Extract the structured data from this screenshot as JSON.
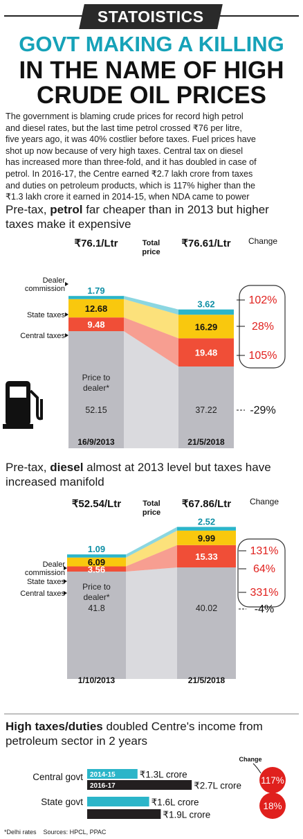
{
  "brand": "STATOISTICS",
  "headline": {
    "line1": "GOVT MAKING A KILLING",
    "line2": "IN THE NAME OF HIGH",
    "line3": "CRUDE OIL PRICES"
  },
  "intro": [
    "The government is blaming crude prices for record high petrol",
    "and diesel rates, but the last time petrol crossed ₹76 per litre,",
    "five years ago, it was 40% costlier before taxes. Fuel prices have",
    "shot up now because of very high taxes. Central tax on diesel",
    "has increased more than three-fold, and it has doubled in case of",
    "petrol. In 2016-17, the Centre earned ₹2.7 lakh crore from taxes",
    "and duties on petroleum products, which is 117% higher than the",
    "₹1.3 lakh crore it earned in 2014-15, when NDA came to power"
  ],
  "petrol": {
    "title_pre": "Pre-tax, ",
    "title_bold": "petrol",
    "title_post": " far cheaper than in 2013 but higher taxes make it expensive"
  },
  "diesel": {
    "title_pre": "Pre-tax, ",
    "title_bold": "diesel",
    "title_post": " almost at 2013 level but taxes have increased manifold"
  },
  "revenue": {
    "title_bold": "High taxes/duties",
    "title_post": " doubled Centre's income from petroleum sector in 2 years"
  },
  "colors": {
    "dealer": "#2bb5c9",
    "state": "#f9c80e",
    "central": "#f04e37",
    "base": "#bcbcc2",
    "change": "#e0201d",
    "bar_dark": "#231f20"
  },
  "footer": {
    "note": "*Delhi rates",
    "sources": "Sources: HPCL, PPAC"
  },
  "chart_data": [
    {
      "type": "bar",
      "title": "Pre-tax, petrol far cheaper than in 2013 but higher taxes make it expensive",
      "stacked": true,
      "categories": [
        "16/9/2013",
        "21/5/2018"
      ],
      "totals": [
        "₹76.1/Ltr",
        "₹76.61/Ltr"
      ],
      "total_label": "Total price",
      "change_label": "Change",
      "series": [
        {
          "name": "Price to dealer*",
          "values": [
            52.15,
            37.22
          ],
          "change": "-29%"
        },
        {
          "name": "Central taxes",
          "values": [
            9.48,
            19.48
          ],
          "change": "105%"
        },
        {
          "name": "State taxes",
          "values": [
            12.68,
            16.29
          ],
          "change": "28%"
        },
        {
          "name": "Dealer commission",
          "values": [
            1.79,
            3.62
          ],
          "change": "102%"
        }
      ]
    },
    {
      "type": "bar",
      "title": "Pre-tax, diesel almost at 2013 level but taxes have increased manifold",
      "stacked": true,
      "categories": [
        "1/10/2013",
        "21/5/2018"
      ],
      "totals": [
        "₹52.54/Ltr",
        "₹67.86/Ltr"
      ],
      "total_label": "Total price",
      "change_label": "Change",
      "series": [
        {
          "name": "Price to dealer*",
          "values": [
            41.8,
            40.02
          ],
          "change": "-4%"
        },
        {
          "name": "Central taxes",
          "values": [
            3.56,
            15.33
          ],
          "change": "331%"
        },
        {
          "name": "State taxes",
          "values": [
            6.09,
            9.99
          ],
          "change": "64%"
        },
        {
          "name": "Dealer commission",
          "values": [
            1.09,
            2.52
          ],
          "change": "131%"
        }
      ]
    },
    {
      "type": "bar",
      "title": "High taxes/duties doubled Centre's income from petroleum sector in 2 years",
      "orientation": "horizontal",
      "change_label": "Change",
      "groups": [
        {
          "name": "Central govt",
          "change": "117%",
          "bars": [
            {
              "period": "2014-15",
              "value": 1.3,
              "label": "₹1.3L crore"
            },
            {
              "period": "2016-17",
              "value": 2.7,
              "label": "₹2.7L crore"
            }
          ]
        },
        {
          "name": "State govt",
          "change": "18%",
          "bars": [
            {
              "period": "",
              "value": 1.6,
              "label": "₹1.6L crore"
            },
            {
              "period": "",
              "value": 1.9,
              "label": "₹1.9L crore"
            }
          ]
        }
      ]
    }
  ]
}
